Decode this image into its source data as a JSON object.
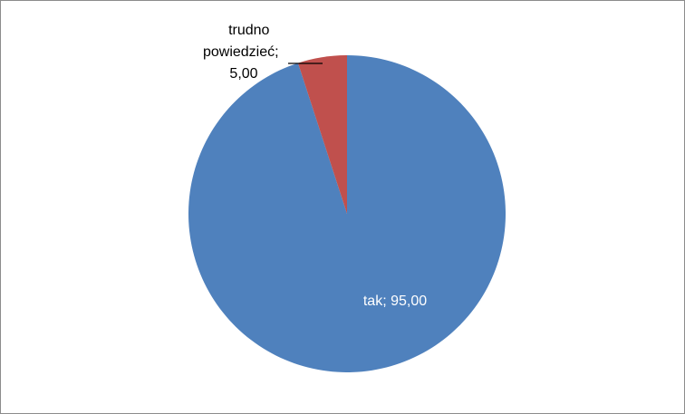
{
  "chart_data": {
    "type": "pie",
    "slices": [
      {
        "label": "tak",
        "value": 95.0,
        "display": "tak; 95,00",
        "color": "#4f81bd",
        "label_color": "#ffffff"
      },
      {
        "label": "trudno powiedzieć",
        "value": 5.0,
        "display": "trudno powiedzieć; 5,00",
        "color": "#c0504d",
        "label_color": "#000000"
      }
    ],
    "start_angle_deg": 0,
    "direction": "clockwise",
    "legend": "none"
  }
}
